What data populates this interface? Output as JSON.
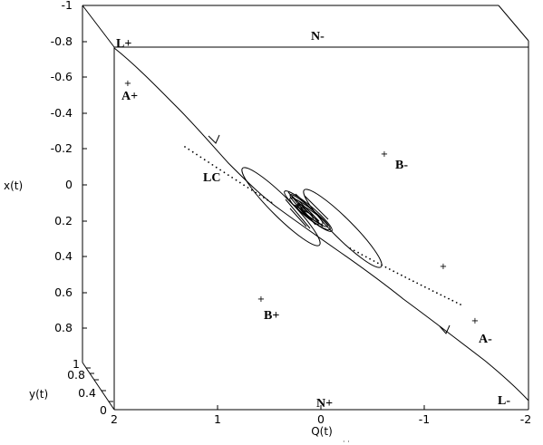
{
  "axes": {
    "x_label": "x(t)",
    "y_label": "y(t)",
    "q_label": "Q(t)",
    "x_ticks": [
      "-1",
      "-0.8",
      "-0.6",
      "-0.4",
      "-0.2",
      "0",
      "0.2",
      "0.4",
      "0.6",
      "0.8"
    ],
    "y_ticks": [
      "1",
      "0.8",
      "0.4",
      "0"
    ],
    "q_ticks": [
      "2",
      "1",
      "0",
      "-1",
      "-2"
    ]
  },
  "points": {
    "L_plus": "L+",
    "N_minus": "N-",
    "A_plus": "A+",
    "LC": "LC",
    "B_minus": "B-",
    "B_plus": "B+",
    "A_minus": "A-",
    "N_plus": "N+",
    "L_minus": "L-"
  }
}
